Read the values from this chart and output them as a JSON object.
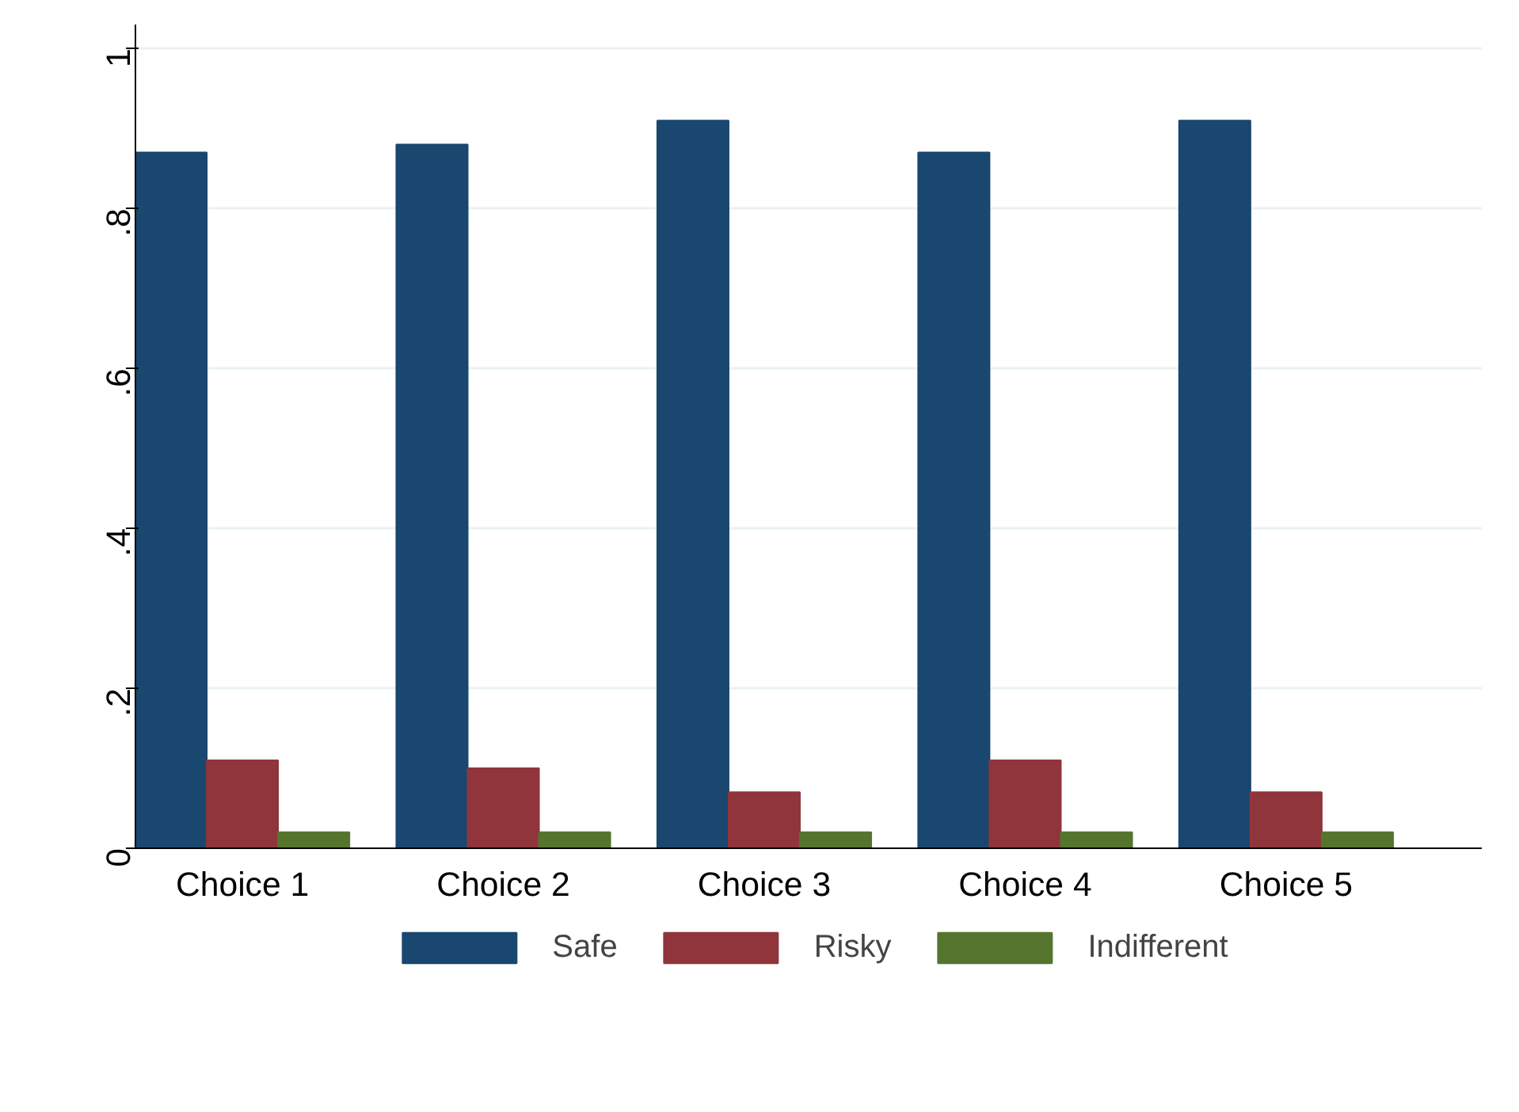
{
  "chart_data": {
    "type": "bar",
    "categories": [
      "Choice 1",
      "Choice 2",
      "Choice 3",
      "Choice 4",
      "Choice 5"
    ],
    "series": [
      {
        "name": "Safe",
        "color": "#1a476f",
        "values": [
          0.87,
          0.88,
          0.91,
          0.87,
          0.91
        ]
      },
      {
        "name": "Risky",
        "color": "#90353b",
        "values": [
          0.11,
          0.1,
          0.07,
          0.11,
          0.07
        ]
      },
      {
        "name": "Indifferent",
        "color": "#55752f",
        "values": [
          0.02,
          0.02,
          0.02,
          0.02,
          0.02
        ]
      }
    ],
    "ylim": [
      0,
      1.03
    ],
    "yticks": [
      0,
      {
        "value": 0.2,
        "label": ".2"
      },
      {
        "value": 0.4,
        "label": ".4"
      },
      {
        "value": 0.6,
        "label": ".6"
      },
      {
        "value": 0.8,
        "label": ".8"
      },
      1
    ],
    "grid": "y",
    "legend": "bottom"
  }
}
